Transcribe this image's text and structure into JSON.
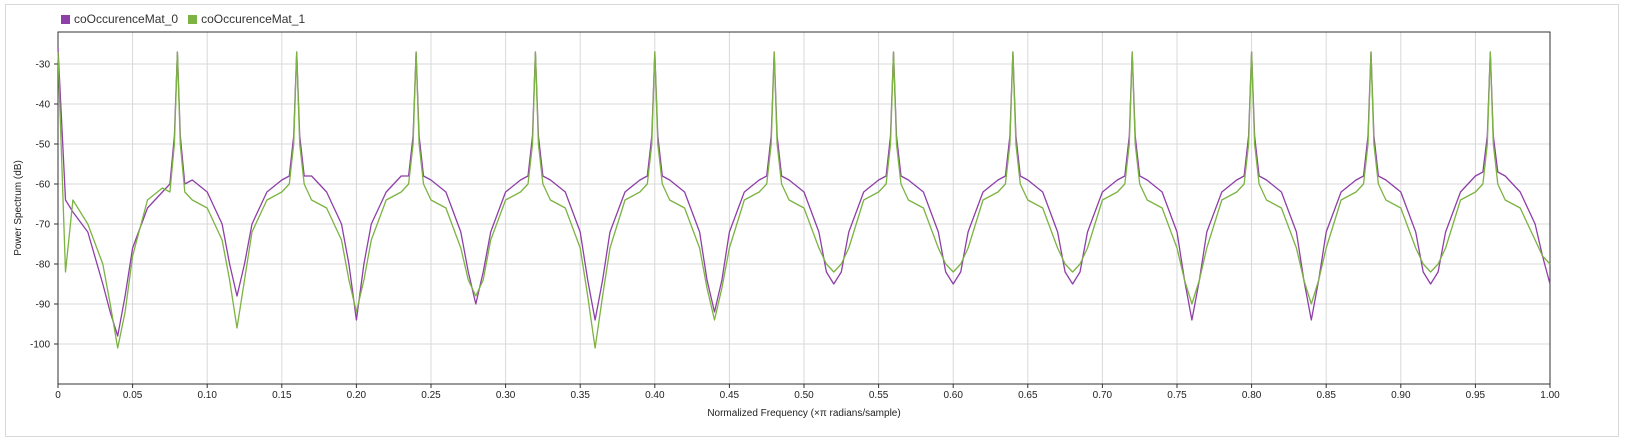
{
  "chart_data": {
    "type": "line",
    "title": "",
    "xlabel": "Normalized Frequency (×π radians/sample)",
    "ylabel": "Power Spectrum (dB)",
    "xlim": [
      0,
      1
    ],
    "ylim": [
      -110,
      -22
    ],
    "xticks": [
      0,
      0.05,
      0.1,
      0.15,
      0.2,
      0.25,
      0.3,
      0.35,
      0.4,
      0.45,
      0.5,
      0.55,
      0.6,
      0.65,
      0.7,
      0.75,
      0.8,
      0.85,
      0.9,
      0.95,
      1.0
    ],
    "xtick_labels": [
      "0",
      "0.05",
      "0.10",
      "0.15",
      "0.20",
      "0.25",
      "0.30",
      "0.35",
      "0.40",
      "0.45",
      "0.50",
      "0.55",
      "0.60",
      "0.65",
      "0.70",
      "0.75",
      "0.80",
      "0.85",
      "0.90",
      "0.95",
      "1.00"
    ],
    "yticks": [
      -30,
      -40,
      -50,
      -60,
      -70,
      -80,
      -90,
      -100
    ],
    "ytick_labels": [
      "-30",
      "-40",
      "-50",
      "-60",
      "-70",
      "-80",
      "-90",
      "-100"
    ],
    "grid": true,
    "legend_position": "top-left",
    "series": [
      {
        "name": "coOccurenceMat_0",
        "color": "#8e3fa8",
        "x": [
          0,
          0.005,
          0.01,
          0.02,
          0.03,
          0.035,
          0.04,
          0.045,
          0.05,
          0.06,
          0.07,
          0.075,
          0.078,
          0.08,
          0.082,
          0.085,
          0.09,
          0.1,
          0.11,
          0.115,
          0.12,
          0.125,
          0.13,
          0.14,
          0.15,
          0.155,
          0.158,
          0.16,
          0.162,
          0.165,
          0.17,
          0.18,
          0.19,
          0.195,
          0.2,
          0.205,
          0.21,
          0.22,
          0.23,
          0.235,
          0.238,
          0.24,
          0.242,
          0.245,
          0.25,
          0.26,
          0.27,
          0.275,
          0.28,
          0.285,
          0.29,
          0.3,
          0.31,
          0.315,
          0.318,
          0.32,
          0.322,
          0.325,
          0.33,
          0.34,
          0.35,
          0.355,
          0.36,
          0.365,
          0.37,
          0.38,
          0.39,
          0.395,
          0.398,
          0.4,
          0.402,
          0.405,
          0.41,
          0.42,
          0.43,
          0.435,
          0.44,
          0.445,
          0.45,
          0.46,
          0.47,
          0.475,
          0.478,
          0.48,
          0.482,
          0.485,
          0.49,
          0.5,
          0.51,
          0.515,
          0.52,
          0.525,
          0.53,
          0.54,
          0.55,
          0.555,
          0.558,
          0.56,
          0.562,
          0.565,
          0.57,
          0.58,
          0.59,
          0.595,
          0.6,
          0.605,
          0.61,
          0.62,
          0.63,
          0.635,
          0.638,
          0.64,
          0.642,
          0.645,
          0.65,
          0.66,
          0.67,
          0.675,
          0.68,
          0.685,
          0.69,
          0.7,
          0.71,
          0.715,
          0.718,
          0.72,
          0.722,
          0.725,
          0.73,
          0.74,
          0.75,
          0.755,
          0.76,
          0.765,
          0.77,
          0.78,
          0.79,
          0.795,
          0.798,
          0.8,
          0.802,
          0.805,
          0.81,
          0.82,
          0.83,
          0.835,
          0.84,
          0.845,
          0.85,
          0.86,
          0.87,
          0.875,
          0.878,
          0.88,
          0.882,
          0.885,
          0.89,
          0.9,
          0.91,
          0.915,
          0.92,
          0.925,
          0.93,
          0.94,
          0.95,
          0.955,
          0.958,
          0.96,
          0.962,
          0.965,
          0.97,
          0.98,
          0.99,
          0.995,
          1.0
        ],
        "y": [
          -26,
          -64,
          -67,
          -72,
          -85,
          -92,
          -98,
          -88,
          -76,
          -66,
          -62,
          -60,
          -48,
          -27,
          -48,
          -60,
          -59,
          -62,
          -70,
          -80,
          -88,
          -80,
          -70,
          -62,
          -59,
          -58,
          -48,
          -27,
          -48,
          -58,
          -58,
          -62,
          -70,
          -80,
          -94,
          -80,
          -70,
          -62,
          -58,
          -58,
          -48,
          -27,
          -48,
          -58,
          -59,
          -62,
          -72,
          -82,
          -90,
          -82,
          -72,
          -62,
          -59,
          -58,
          -48,
          -27,
          -48,
          -58,
          -59,
          -62,
          -72,
          -84,
          -94,
          -84,
          -72,
          -62,
          -59,
          -58,
          -48,
          -27,
          -48,
          -58,
          -59,
          -62,
          -72,
          -84,
          -92,
          -84,
          -72,
          -62,
          -59,
          -58,
          -48,
          -27,
          -48,
          -58,
          -59,
          -62,
          -72,
          -82,
          -85,
          -82,
          -72,
          -62,
          -59,
          -58,
          -48,
          -27,
          -48,
          -58,
          -59,
          -62,
          -72,
          -82,
          -85,
          -82,
          -72,
          -62,
          -59,
          -58,
          -48,
          -27,
          -48,
          -58,
          -59,
          -62,
          -72,
          -82,
          -85,
          -82,
          -72,
          -62,
          -59,
          -58,
          -48,
          -27,
          -48,
          -58,
          -59,
          -62,
          -72,
          -84,
          -94,
          -84,
          -72,
          -62,
          -59,
          -58,
          -48,
          -27,
          -48,
          -58,
          -59,
          -62,
          -72,
          -84,
          -94,
          -84,
          -72,
          -62,
          -59,
          -58,
          -48,
          -27,
          -48,
          -58,
          -59,
          -62,
          -72,
          -82,
          -85,
          -82,
          -72,
          -62,
          -58,
          -57,
          -48,
          -27,
          -48,
          -57,
          -58,
          -62,
          -70,
          -78,
          -85
        ]
      },
      {
        "name": "coOccurenceMat_1",
        "color": "#7cb342",
        "x": [
          0,
          0.005,
          0.01,
          0.02,
          0.03,
          0.035,
          0.04,
          0.045,
          0.05,
          0.06,
          0.07,
          0.075,
          0.078,
          0.08,
          0.082,
          0.085,
          0.09,
          0.1,
          0.11,
          0.115,
          0.12,
          0.125,
          0.13,
          0.14,
          0.15,
          0.155,
          0.158,
          0.16,
          0.162,
          0.165,
          0.17,
          0.18,
          0.19,
          0.195,
          0.2,
          0.205,
          0.21,
          0.22,
          0.23,
          0.235,
          0.238,
          0.24,
          0.242,
          0.245,
          0.25,
          0.26,
          0.27,
          0.275,
          0.28,
          0.285,
          0.29,
          0.3,
          0.31,
          0.315,
          0.318,
          0.32,
          0.322,
          0.325,
          0.33,
          0.34,
          0.35,
          0.355,
          0.36,
          0.365,
          0.37,
          0.38,
          0.39,
          0.395,
          0.398,
          0.4,
          0.402,
          0.405,
          0.41,
          0.42,
          0.43,
          0.435,
          0.44,
          0.445,
          0.45,
          0.46,
          0.47,
          0.475,
          0.478,
          0.48,
          0.482,
          0.485,
          0.49,
          0.5,
          0.51,
          0.515,
          0.52,
          0.525,
          0.53,
          0.54,
          0.55,
          0.555,
          0.558,
          0.56,
          0.562,
          0.565,
          0.57,
          0.58,
          0.59,
          0.595,
          0.6,
          0.605,
          0.61,
          0.62,
          0.63,
          0.635,
          0.638,
          0.64,
          0.642,
          0.645,
          0.65,
          0.66,
          0.67,
          0.675,
          0.68,
          0.685,
          0.69,
          0.7,
          0.71,
          0.715,
          0.718,
          0.72,
          0.722,
          0.725,
          0.73,
          0.74,
          0.75,
          0.755,
          0.76,
          0.765,
          0.77,
          0.78,
          0.79,
          0.795,
          0.798,
          0.8,
          0.802,
          0.805,
          0.81,
          0.82,
          0.83,
          0.835,
          0.84,
          0.845,
          0.85,
          0.86,
          0.87,
          0.875,
          0.878,
          0.88,
          0.882,
          0.885,
          0.89,
          0.9,
          0.91,
          0.915,
          0.92,
          0.925,
          0.93,
          0.94,
          0.95,
          0.955,
          0.958,
          0.96,
          0.962,
          0.965,
          0.97,
          0.98,
          0.99,
          0.995,
          1.0
        ],
        "y": [
          -27,
          -82,
          -64,
          -70,
          -80,
          -90,
          -101,
          -92,
          -78,
          -64,
          -61,
          -62,
          -50,
          -27,
          -50,
          -62,
          -64,
          -66,
          -74,
          -84,
          -96,
          -84,
          -72,
          -64,
          -62,
          -60,
          -50,
          -27,
          -50,
          -60,
          -64,
          -66,
          -74,
          -84,
          -92,
          -84,
          -74,
          -64,
          -62,
          -60,
          -50,
          -27,
          -50,
          -60,
          -64,
          -66,
          -76,
          -84,
          -88,
          -84,
          -74,
          -64,
          -62,
          -60,
          -50,
          -27,
          -50,
          -60,
          -64,
          -66,
          -76,
          -88,
          -101,
          -88,
          -76,
          -64,
          -62,
          -60,
          -50,
          -27,
          -50,
          -60,
          -64,
          -66,
          -76,
          -86,
          -94,
          -86,
          -76,
          -64,
          -62,
          -60,
          -50,
          -27,
          -50,
          -60,
          -64,
          -66,
          -76,
          -80,
          -82,
          -80,
          -76,
          -64,
          -62,
          -60,
          -50,
          -27,
          -50,
          -60,
          -64,
          -66,
          -76,
          -80,
          -82,
          -80,
          -76,
          -64,
          -62,
          -60,
          -50,
          -27,
          -50,
          -60,
          -64,
          -66,
          -76,
          -80,
          -82,
          -80,
          -76,
          -64,
          -62,
          -60,
          -50,
          -27,
          -50,
          -60,
          -64,
          -66,
          -76,
          -84,
          -90,
          -84,
          -76,
          -64,
          -62,
          -60,
          -50,
          -27,
          -50,
          -60,
          -64,
          -66,
          -76,
          -84,
          -90,
          -84,
          -76,
          -64,
          -62,
          -60,
          -50,
          -27,
          -50,
          -60,
          -64,
          -66,
          -76,
          -80,
          -82,
          -80,
          -76,
          -64,
          -62,
          -60,
          -50,
          -27,
          -50,
          -60,
          -64,
          -66,
          -74,
          -78,
          -80
        ]
      }
    ]
  }
}
